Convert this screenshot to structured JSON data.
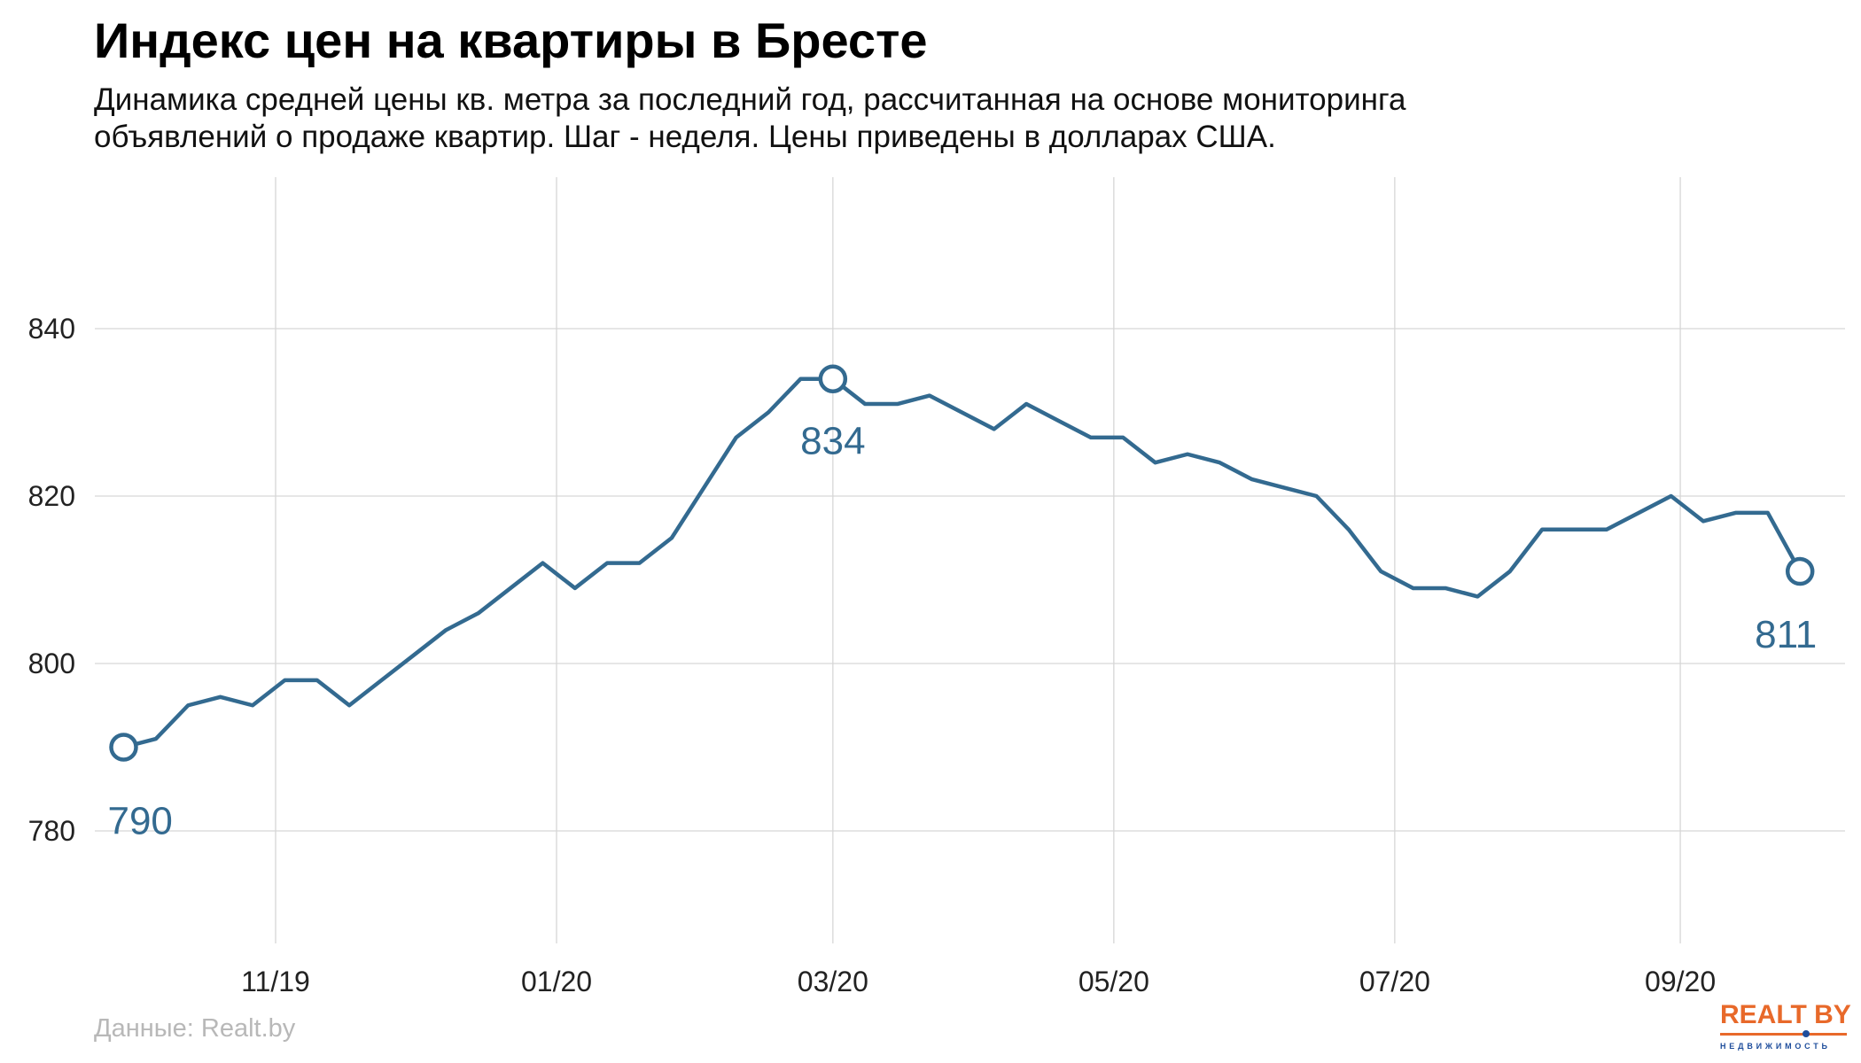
{
  "title": "Индекс цен на квартиры в Бресте",
  "subtitle_line1": "Динамика средней цены кв. метра за последний год, рассчитанная на основе мониторинга",
  "subtitle_line2": "объявлений о продаже квартир. Шаг - неделя. Цены приведены в долларах США.",
  "source": "Данные: Realt.by",
  "logo": {
    "text": "REALT.BY",
    "subtext": "НЕДВИЖИМОСТЬ",
    "color": "#e8692a",
    "subcolor": "#1f4e9c"
  },
  "chart_data": {
    "type": "line",
    "title": "",
    "xlabel": "",
    "ylabel": "",
    "ylim": [
      768,
      858
    ],
    "grid": true,
    "line_color": "#336a90",
    "y_ticks": [
      780,
      800,
      820,
      840
    ],
    "x_ticks": [
      {
        "date": "2019-11-01",
        "label": "11/19"
      },
      {
        "date": "2020-01-01",
        "label": "01/20"
      },
      {
        "date": "2020-03-01",
        "label": "03/20"
      },
      {
        "date": "2020-05-01",
        "label": "05/20"
      },
      {
        "date": "2020-07-01",
        "label": "07/20"
      },
      {
        "date": "2020-09-01",
        "label": "09/20"
      }
    ],
    "x": [
      "2019-09-29",
      "2019-10-06",
      "2019-10-13",
      "2019-10-20",
      "2019-10-27",
      "2019-11-03",
      "2019-11-10",
      "2019-11-17",
      "2019-11-24",
      "2019-12-01",
      "2019-12-08",
      "2019-12-15",
      "2019-12-22",
      "2019-12-29",
      "2020-01-05",
      "2020-01-12",
      "2020-01-19",
      "2020-01-26",
      "2020-02-02",
      "2020-02-09",
      "2020-02-16",
      "2020-02-23",
      "2020-03-01",
      "2020-03-08",
      "2020-03-15",
      "2020-03-22",
      "2020-03-29",
      "2020-04-05",
      "2020-04-12",
      "2020-04-19",
      "2020-04-26",
      "2020-05-03",
      "2020-05-10",
      "2020-05-17",
      "2020-05-24",
      "2020-05-31",
      "2020-06-07",
      "2020-06-14",
      "2020-06-21",
      "2020-06-28",
      "2020-07-05",
      "2020-07-12",
      "2020-07-19",
      "2020-07-26",
      "2020-08-02",
      "2020-08-09",
      "2020-08-16",
      "2020-08-23",
      "2020-08-30",
      "2020-09-06",
      "2020-09-13",
      "2020-09-20",
      "2020-09-27"
    ],
    "y": [
      790,
      791,
      795,
      796,
      795,
      798,
      798,
      795,
      798,
      801,
      804,
      806,
      809,
      812,
      809,
      812,
      812,
      815,
      821,
      827,
      830,
      834,
      834,
      831,
      831,
      832,
      830,
      828,
      831,
      829,
      827,
      827,
      824,
      825,
      824,
      822,
      821,
      820,
      816,
      811,
      809,
      809,
      808,
      811,
      816,
      816,
      816,
      818,
      820,
      817,
      818,
      818,
      811
    ],
    "annotations": [
      {
        "index": 0,
        "label": "790"
      },
      {
        "index": 22,
        "label": "834"
      },
      {
        "index": 52,
        "label": "811"
      }
    ]
  }
}
